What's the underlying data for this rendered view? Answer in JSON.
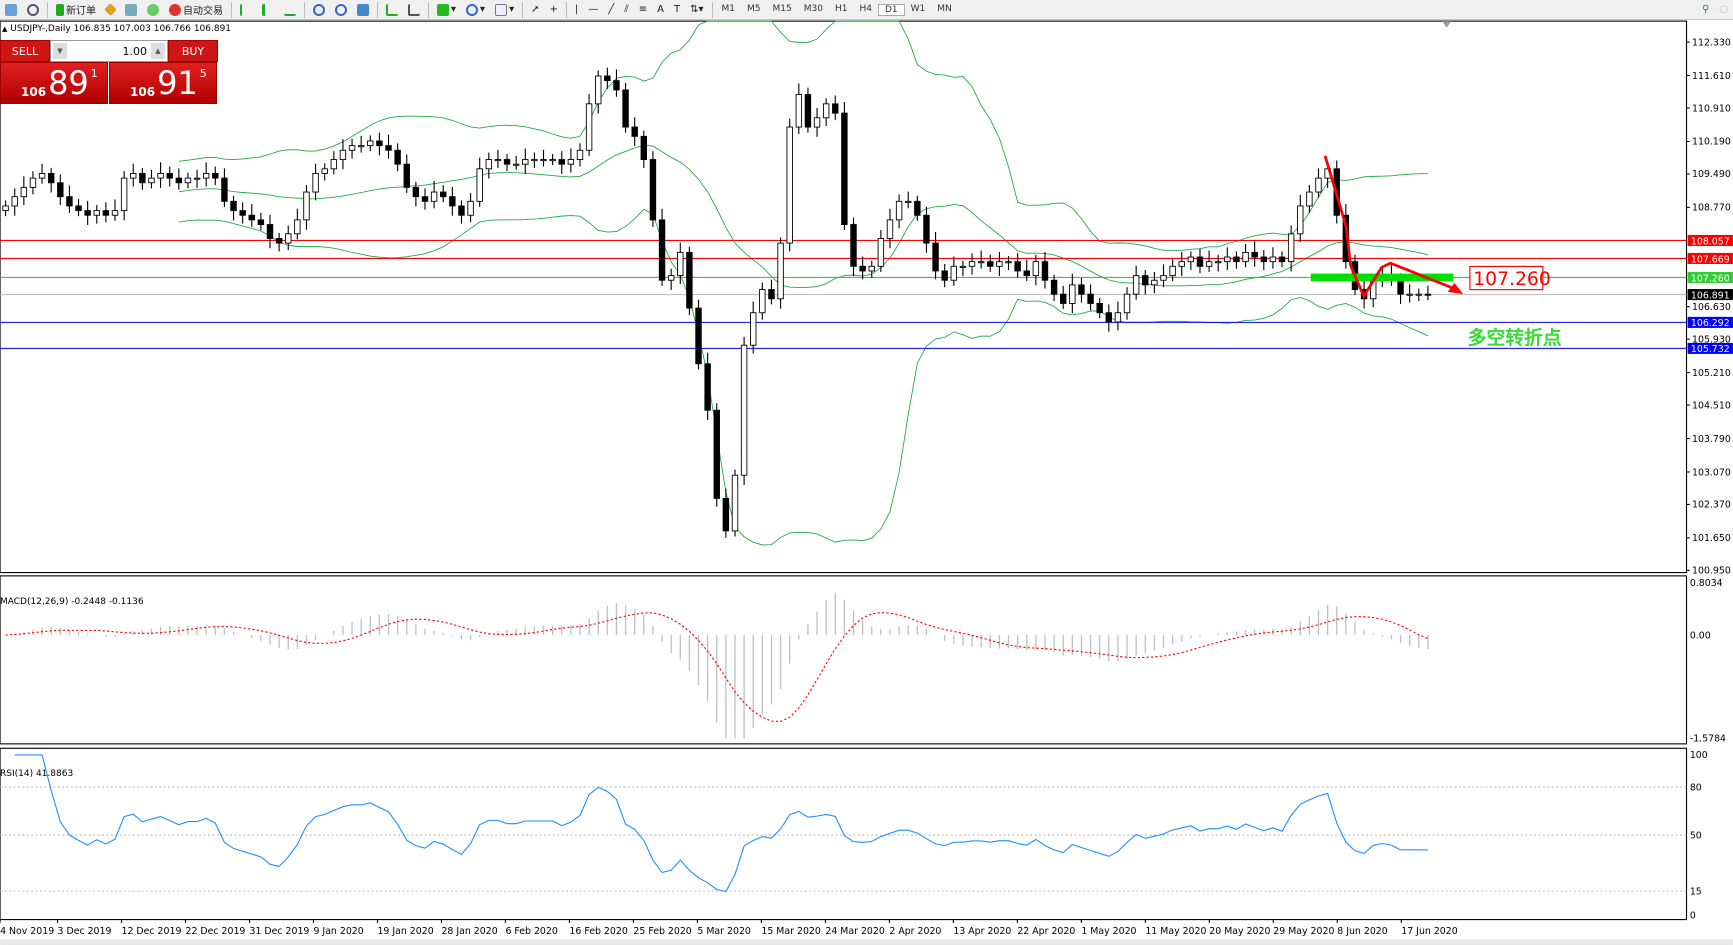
{
  "toolbar": {
    "new_order": "新订单",
    "auto_trading": "自动交易",
    "timeframes": [
      "M1",
      "M5",
      "M15",
      "M30",
      "H1",
      "H4",
      "D1",
      "W1",
      "MN"
    ],
    "active_timeframe": "D1"
  },
  "header": {
    "symbol": "USDJPY-,Daily",
    "ohlc": "106.835 107.003 106.766 106.891"
  },
  "trade_panel": {
    "sell_label": "SELL",
    "buy_label": "BUY",
    "lot": "1.00",
    "sell_prefix": "106",
    "sell_big": "89",
    "sell_sup": "1",
    "buy_prefix": "106",
    "buy_big": "91",
    "buy_sup": "5"
  },
  "price_axis": {
    "ticks": [
      "112.330",
      "111.610",
      "110.910",
      "110.190",
      "109.490",
      "108.770",
      "106.630",
      "105.930",
      "105.210",
      "104.510",
      "103.790",
      "103.070",
      "102.370",
      "101.650",
      "100.950"
    ]
  },
  "levels": [
    {
      "value": "108.057",
      "color": "#ff0000"
    },
    {
      "value": "107.669",
      "color": "#ff0000"
    },
    {
      "value": "107.260",
      "color": "#33cc33"
    },
    {
      "value": "106.891",
      "color": "#000000",
      "line": "#c0c0c0"
    },
    {
      "value": "106.292",
      "color": "#0000ff"
    },
    {
      "value": "105.732",
      "color": "#0000ff"
    }
  ],
  "annotations": {
    "price_label": "107.260",
    "pivot_text": "多空转折点",
    "price_label_color": "#ff0000",
    "pivot_color": "#33dd33"
  },
  "macd": {
    "label": "MACD(12,26,9) -0.2448 -0.1136",
    "ticks": [
      "0.8034",
      "0.00",
      "-1.5784"
    ]
  },
  "rsi": {
    "label": "RSI(14) 41.8863",
    "ticks": [
      "100",
      "80",
      "50",
      "15",
      "0"
    ]
  },
  "date_axis": [
    "4 Nov 2019",
    "3 Dec 2019",
    "12 Dec 2019",
    "22 Dec 2019",
    "31 Dec 2019",
    "9 Jan 2020",
    "19 Jan 2020",
    "28 Jan 2020",
    "6 Feb 2020",
    "16 Feb 2020",
    "25 Feb 2020",
    "5 Mar 2020",
    "15 Mar 2020",
    "24 Mar 2020",
    "2 Apr 2020",
    "13 Apr 2020",
    "22 Apr 2020",
    "1 May 2020",
    "11 May 2020",
    "20 May 2020",
    "29 May 2020",
    "8 Jun 2020",
    "17 Jun 2020"
  ],
  "chart_data": {
    "type": "candlestick",
    "symbol": "USDJPY-",
    "timeframe": "Daily",
    "ylim": [
      100.95,
      112.33
    ],
    "indicators": [
      "Bollinger Bands (20,2)",
      "MACD(12,26,9)",
      "RSI(14)"
    ],
    "closes": [
      108.8,
      109.0,
      109.2,
      109.4,
      109.5,
      109.3,
      109.0,
      108.8,
      108.7,
      108.6,
      108.7,
      108.6,
      108.7,
      109.4,
      109.5,
      109.3,
      109.4,
      109.5,
      109.4,
      109.3,
      109.4,
      109.4,
      109.5,
      109.4,
      108.9,
      108.7,
      108.6,
      108.5,
      108.4,
      108.1,
      108.0,
      108.2,
      108.5,
      109.1,
      109.5,
      109.6,
      109.8,
      110.0,
      110.1,
      110.1,
      110.2,
      110.1,
      110.0,
      109.7,
      109.2,
      109.0,
      108.9,
      109.1,
      109.0,
      108.8,
      108.6,
      108.9,
      109.6,
      109.8,
      109.8,
      109.7,
      109.7,
      109.8,
      109.8,
      109.8,
      109.8,
      109.7,
      109.8,
      110.0,
      111.0,
      111.6,
      111.5,
      111.3,
      110.5,
      110.3,
      109.8,
      108.5,
      107.2,
      107.3,
      107.8,
      106.6,
      105.4,
      104.4,
      102.5,
      101.8,
      103.0,
      105.8,
      106.5,
      107.0,
      106.8,
      108.0,
      110.5,
      111.2,
      110.5,
      110.7,
      111.0,
      110.8,
      108.4,
      107.5,
      107.4,
      107.5,
      108.1,
      108.5,
      108.9,
      108.9,
      108.6,
      108.0,
      107.4,
      107.2,
      107.5,
      107.5,
      107.6,
      107.6,
      107.5,
      107.6,
      107.6,
      107.4,
      107.3,
      107.6,
      107.2,
      106.9,
      106.7,
      107.1,
      106.9,
      106.7,
      106.5,
      106.3,
      106.5,
      106.9,
      107.3,
      107.1,
      107.2,
      107.3,
      107.5,
      107.6,
      107.7,
      107.5,
      107.6,
      107.6,
      107.7,
      107.6,
      107.8,
      107.7,
      107.6,
      107.7,
      107.6,
      108.2,
      108.8,
      109.1,
      109.4,
      109.6,
      108.6,
      107.6,
      107.0,
      106.8,
      107.2,
      107.3,
      107.2,
      106.9,
      106.9,
      106.9,
      106.89
    ]
  },
  "colors": {
    "bollinger": "#22aa44",
    "macd_signal": "#ff0000",
    "macd_hist": "#c0c0c0",
    "rsi": "#1e90ff",
    "trend_arrow": "#ff0000",
    "pivot_bar": "#00e000"
  }
}
